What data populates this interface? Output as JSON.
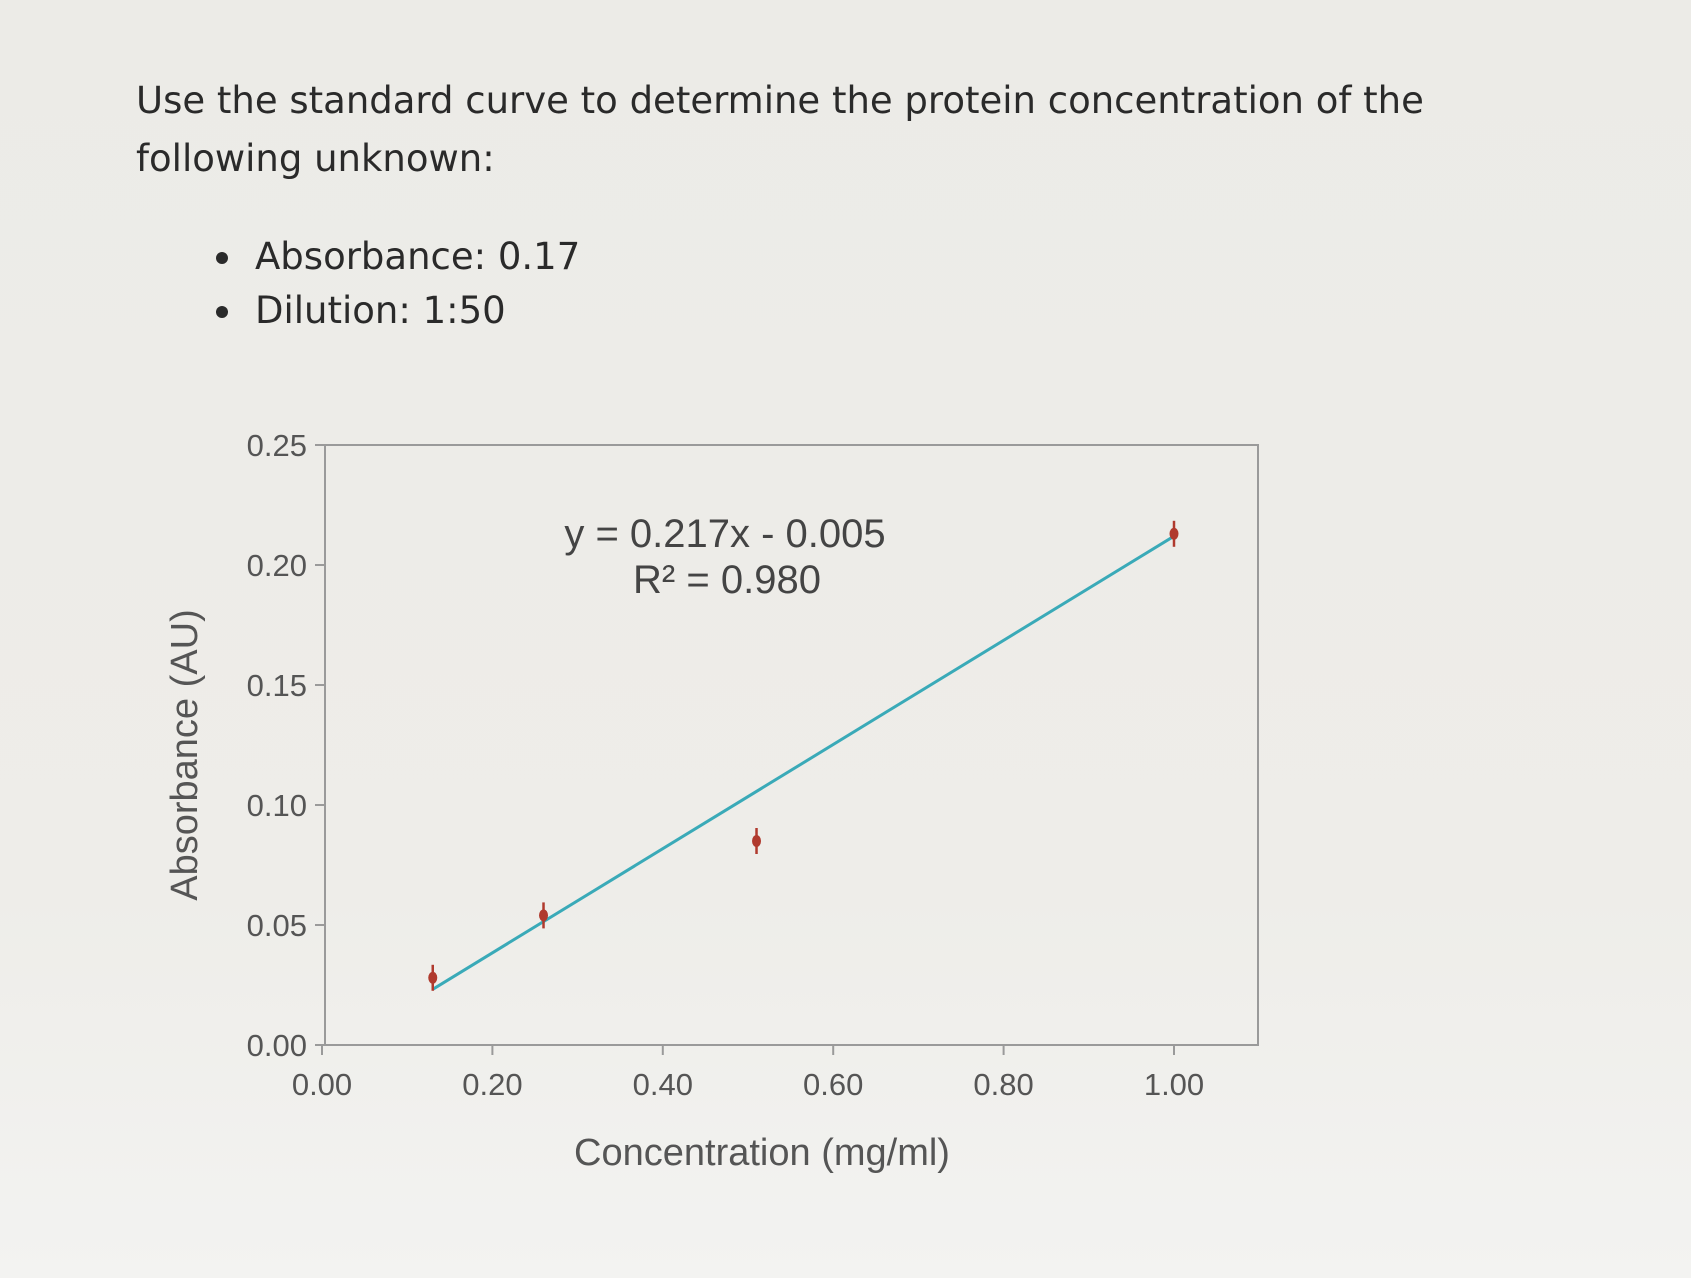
{
  "question": {
    "text": "Use the standard curve to determine the protein concentration of the following unknown:"
  },
  "bullets": [
    "Absorbance: 0.17",
    "Dilution: 1:50"
  ],
  "chart_data": {
    "type": "scatter",
    "title": "",
    "xlabel": "Concentration (mg/ml)",
    "ylabel": "Absorbance (AU)",
    "xlim": [
      0,
      1.1
    ],
    "ylim": [
      0,
      0.25
    ],
    "x_ticks": [
      "0.00",
      "0.20",
      "0.40",
      "0.60",
      "0.80",
      "1.00"
    ],
    "x_tick_values": [
      0,
      0.2,
      0.4,
      0.6,
      0.8,
      1.0
    ],
    "y_ticks": [
      "0.00",
      "0.05",
      "0.10",
      "0.15",
      "0.20",
      "0.25"
    ],
    "y_tick_values": [
      0,
      0.05,
      0.1,
      0.15,
      0.2,
      0.25
    ],
    "grid": false,
    "series": [
      {
        "x": [
          0.13,
          0.26,
          0.51,
          1.0
        ],
        "y": [
          0.028,
          0.054,
          0.085,
          0.213
        ],
        "color": "#b03a2e"
      }
    ],
    "trendline": {
      "slope": 0.217,
      "intercept": -0.005,
      "x_range": [
        0.13,
        1.0
      ],
      "color": "#3aaab8"
    },
    "annotations": {
      "equation": "y = 0.217x - 0.005",
      "r_squared": "R² = 0.980"
    }
  }
}
